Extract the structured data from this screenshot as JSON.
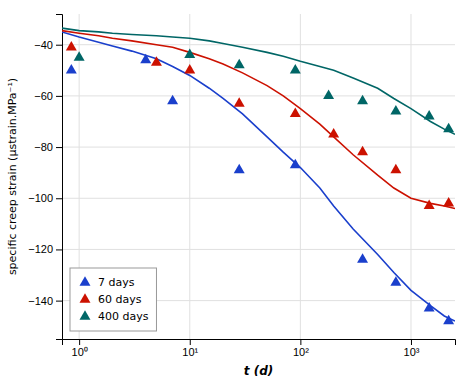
{
  "chart_data": {
    "type": "line",
    "xlabel": "t (d)",
    "ylabel": "specific creep strain (μstrain.MPa⁻¹)",
    "log": "x",
    "xlim": [
      0.7,
      2500
    ],
    "xticks": [
      {
        "value": 1,
        "label": "10⁰"
      },
      {
        "value": 10,
        "label": "10¹"
      },
      {
        "value": 100,
        "label": "10²"
      },
      {
        "value": 1000,
        "label": "10³"
      }
    ],
    "ylim": [
      -155,
      -28
    ],
    "yticks": [
      -140,
      -120,
      -100,
      -80,
      -60,
      -40
    ],
    "grid": true,
    "legend": "lower left",
    "series": [
      {
        "type": "line",
        "color": "#1a3fcc",
        "x": [
          0.7,
          1.0,
          1.5,
          2.0,
          3.0,
          5.0,
          7.0,
          10,
          15,
          20,
          30,
          50,
          70,
          100,
          150,
          200,
          300,
          500,
          700,
          1000,
          1500,
          2000,
          2500
        ],
        "values": [
          -35,
          -37,
          -39,
          -40.5,
          -42.5,
          -45.5,
          -48.5,
          -52,
          -57,
          -61,
          -67,
          -76,
          -82,
          -88,
          -96,
          -103,
          -112,
          -122,
          -129,
          -136,
          -142,
          -146,
          -148
        ]
      },
      {
        "type": "line",
        "color": "#cc1100",
        "x": [
          0.7,
          1.0,
          1.5,
          2.0,
          3.0,
          5.0,
          7.0,
          10,
          15,
          20,
          30,
          50,
          70,
          100,
          150,
          200,
          300,
          500,
          700,
          1000,
          1500,
          2000,
          2500
        ],
        "values": [
          -34.5,
          -35.5,
          -36.5,
          -37.5,
          -38.5,
          -40,
          -41,
          -43,
          -45.5,
          -47.5,
          -51,
          -56,
          -60,
          -65,
          -71,
          -76,
          -83,
          -91,
          -96,
          -100,
          -102,
          -103,
          -104
        ]
      },
      {
        "type": "line",
        "color": "#006666",
        "x": [
          0.7,
          1.0,
          1.5,
          2.0,
          3.0,
          5.0,
          7.0,
          10,
          15,
          20,
          30,
          50,
          70,
          100,
          150,
          200,
          300,
          500,
          700,
          1000,
          1500,
          2000,
          2500
        ],
        "values": [
          -33.5,
          -34.5,
          -35,
          -35.5,
          -36,
          -36.5,
          -37,
          -37.5,
          -38.5,
          -39.5,
          -41,
          -43,
          -44.5,
          -46.5,
          -48.5,
          -50,
          -53,
          -57,
          -61,
          -65,
          -70,
          -73,
          -75
        ]
      },
      {
        "type": "scatter",
        "name": "7 days",
        "color": "#1a3fcc",
        "marker": "triangle",
        "x": [
          0.85,
          4,
          7,
          28,
          90,
          365,
          730,
          1460,
          2190
        ],
        "values": [
          -50,
          -46,
          -62,
          -89,
          -87,
          -124,
          -133,
          -143,
          -148
        ]
      },
      {
        "type": "scatter",
        "name": "60 days",
        "color": "#cc1100",
        "marker": "triangle",
        "x": [
          0.85,
          5,
          10,
          28,
          90,
          200,
          365,
          730,
          1460,
          2190
        ],
        "values": [
          -41,
          -47,
          -50,
          -63,
          -67,
          -75,
          -82,
          -89,
          -103,
          -102
        ]
      },
      {
        "type": "scatter",
        "name": "400 days",
        "color": "#006666",
        "marker": "triangle",
        "x": [
          1.0,
          10,
          28,
          90,
          180,
          365,
          730,
          1460,
          2190
        ],
        "values": [
          -45,
          -44,
          -48,
          -50,
          -60,
          -62,
          -66,
          -68,
          -73
        ]
      }
    ]
  }
}
